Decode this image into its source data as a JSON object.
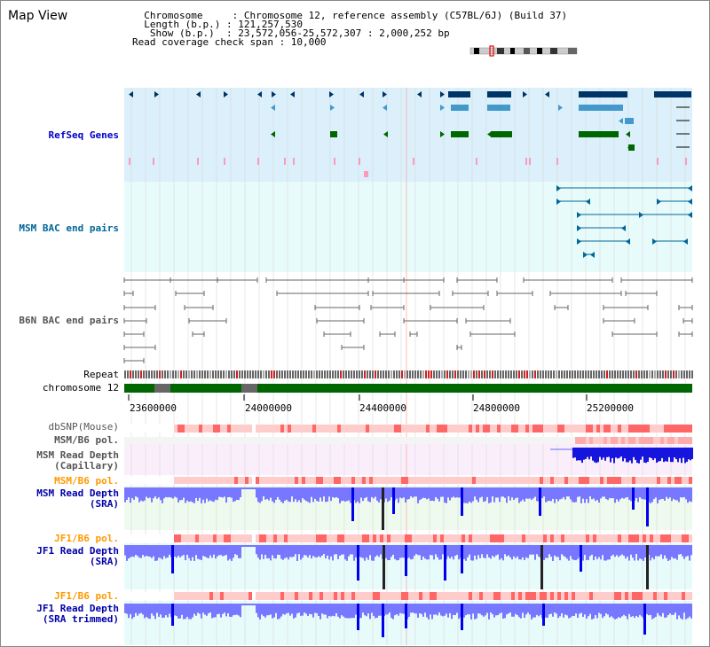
{
  "header": {
    "title": "Map View",
    "info_lines": [
      "  Chromosome     : Chromosome 12, reference assembly (C57BL/6J) (Build 37)",
      "  Length (b.p.) : 121,257,530",
      "   Show (b.p.)  : 23,572,056-25,572,307 : 2,000,252 bp",
      "Read coverage check span : 10,000"
    ]
  },
  "tracks": {
    "refseq": {
      "label": "RefSeq Genes",
      "color": "#0000cc"
    },
    "msm_bac": {
      "label": "MSM BAC end pairs",
      "color": "#006699"
    },
    "b6n_bac": {
      "label": "B6N BAC end pairs",
      "color": "#555555"
    },
    "repeat": {
      "label": "Repeat",
      "color": "#000000"
    },
    "chromosome": {
      "label": "chromosome 12",
      "color": "#000000"
    },
    "dbsnp": {
      "label": "dbSNP(Mouse)",
      "color": "#555555"
    },
    "msm_pol_1": {
      "label": "MSM/B6 pol.",
      "color": "#555555"
    },
    "msm_depth_cap": {
      "label": "MSM Read Depth\n(Capillary)",
      "color": "#555555"
    },
    "msm_pol_2": {
      "label": "MSM/B6 pol.",
      "color": "#ff9900"
    },
    "msm_depth_sra": {
      "label": "MSM Read Depth\n(SRA)",
      "color": "#0000aa"
    },
    "jf1_pol_1": {
      "label": "JF1/B6 pol.",
      "color": "#ff9900"
    },
    "jf1_depth_sra": {
      "label": "JF1 Read Depth\n(SRA)",
      "color": "#0000aa"
    },
    "jf1_pol_2": {
      "label": "JF1/B6 pol.",
      "color": "#ff9900"
    },
    "jf1_depth_trim": {
      "label": "JF1 Read Depth\n(SRA trimmed)",
      "color": "#0000aa"
    }
  },
  "axis": {
    "ticks": [
      "23600000",
      "24000000",
      "24400000",
      "24800000",
      "25200000"
    ]
  },
  "colors": {
    "refseq_bg": "#dbf0fb",
    "bac_bg": "#e8fbfb",
    "refseq_dark": "#003366",
    "refseq_mid": "#4499cc",
    "refseq_green": "#006600",
    "refseq_pink": "#ff99bb",
    "chromosome_green": "#006600",
    "depth_blue": "#7777ff",
    "depth_dark_blue": "#0000ee",
    "snp_pink": "#ffcccc",
    "snp_red": "#ff6666"
  }
}
